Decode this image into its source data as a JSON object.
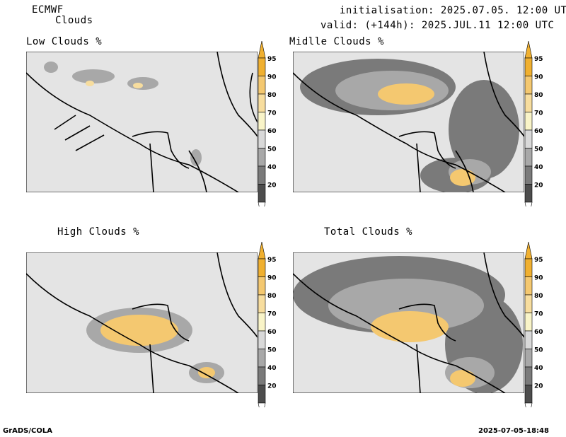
{
  "header": {
    "model": "ECMWF",
    "product": "Clouds",
    "init_line": "initialisation: 2025.07.05. 12:00 UTC",
    "valid_line": "valid: (+144h): 2025.JUL.11 12:00 UTC"
  },
  "panels": [
    {
      "id": "low",
      "title": "Low Clouds %"
    },
    {
      "id": "middle",
      "title": "Midlle Clouds %"
    },
    {
      "id": "high",
      "title": "High Clouds %"
    },
    {
      "id": "total",
      "title": "Total Clouds %"
    }
  ],
  "colorbar": {
    "levels": [
      "95",
      "90",
      "80",
      "70",
      "60",
      "50",
      "40",
      "20"
    ],
    "colors": [
      "#f0b030",
      "#f4c870",
      "#f7dd9e",
      "#f9f4c8",
      "#d9d9d9",
      "#a8a8a8",
      "#7a7a7a",
      "#4d4d4d"
    ]
  },
  "colors": {
    "land": "#e4e4e4",
    "border": "#000000"
  },
  "footer": {
    "left": "GrADS/COLA",
    "right": "2025-07-05-18:48"
  }
}
